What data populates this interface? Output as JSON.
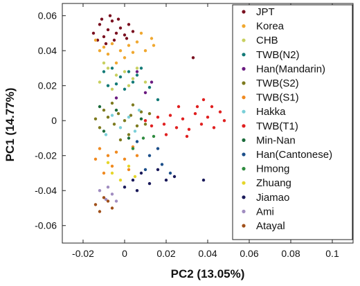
{
  "chart_data": {
    "type": "scatter",
    "xlabel": "PC2 (13.05%)",
    "ylabel": "PC1 (14.77%)",
    "xlim": [
      -0.03,
      0.11
    ],
    "ylim": [
      -0.07,
      0.067
    ],
    "x_ticks": [
      "-0.02",
      "0",
      "0.02",
      "0.04",
      "0.06",
      "0.08",
      "0.1"
    ],
    "x_tick_values": [
      -0.02,
      0,
      0.02,
      0.04,
      0.06,
      0.08,
      0.1
    ],
    "y_ticks": [
      "0.06",
      "0.04",
      "0.02",
      "0",
      "-0.02",
      "-0.04",
      "-0.06"
    ],
    "y_tick_values": [
      0.06,
      0.04,
      0.02,
      0,
      -0.02,
      -0.04,
      -0.06
    ],
    "legend_position": "top-right",
    "series": [
      {
        "name": "JPT",
        "color": "#7a1020",
        "points": [
          [
            -0.015,
            0.05
          ],
          [
            -0.012,
            0.055
          ],
          [
            -0.01,
            0.048
          ],
          [
            -0.008,
            0.052
          ],
          [
            -0.006,
            0.057
          ],
          [
            -0.004,
            0.05
          ],
          [
            -0.002,
            0.053
          ],
          [
            0,
            0.049
          ],
          [
            0.002,
            0.055
          ],
          [
            -0.009,
            0.044
          ],
          [
            -0.005,
            0.046
          ],
          [
            -0.011,
            0.058
          ],
          [
            0.001,
            0.047
          ],
          [
            -0.013,
            0.046
          ],
          [
            -0.003,
            0.058
          ],
          [
            0.004,
            0.051
          ],
          [
            -0.007,
            0.06
          ],
          [
            0.033,
            0.036
          ]
        ]
      },
      {
        "name": "Korea",
        "color": "#f0a830",
        "points": [
          [
            -0.014,
            0.046
          ],
          [
            -0.01,
            0.042
          ],
          [
            -0.006,
            0.044
          ],
          [
            -0.002,
            0.04
          ],
          [
            0.002,
            0.043
          ],
          [
            0.006,
            0.045
          ],
          [
            0.01,
            0.04
          ],
          [
            0.013,
            0.047
          ],
          [
            -0.008,
            0.038
          ],
          [
            0,
            0.036
          ],
          [
            0.004,
            0.039
          ],
          [
            -0.012,
            0.04
          ],
          [
            0.008,
            0.05
          ],
          [
            0.014,
            0.043
          ],
          [
            -0.004,
            0.033
          ]
        ]
      },
      {
        "name": "CHB",
        "color": "#c8d060",
        "points": [
          [
            -0.008,
            0.03
          ],
          [
            -0.004,
            0.026
          ],
          [
            0,
            0.028
          ],
          [
            0.004,
            0.024
          ],
          [
            -0.012,
            0.022
          ],
          [
            0.002,
            0.02
          ],
          [
            0.006,
            0.03
          ],
          [
            -0.006,
            0.018
          ],
          [
            0.01,
            0.022
          ],
          [
            -0.01,
            0.033
          ]
        ]
      },
      {
        "name": "TWB(N2)",
        "color": "#137a77",
        "points": [
          [
            -0.01,
            0.028
          ],
          [
            -0.006,
            0.03
          ],
          [
            -0.002,
            0.025
          ],
          [
            0.002,
            0.028
          ],
          [
            0.006,
            0.026
          ],
          [
            -0.004,
            0.021
          ],
          [
            0,
            0.018
          ],
          [
            0.004,
            0.022
          ],
          [
            -0.008,
            0.02
          ],
          [
            0.008,
            0.03
          ],
          [
            0.012,
            0.019
          ],
          [
            0.016,
            0.012
          ]
        ]
      },
      {
        "name": "Han(Mandarin)",
        "color": "#6a1a80",
        "points": [
          [
            0.006,
            0.028
          ],
          [
            0.01,
            0.016
          ],
          [
            -0.004,
            0.013
          ],
          [
            0.013,
            0.022
          ]
        ]
      },
      {
        "name": "TWB(S2)",
        "color": "#7d7a1e",
        "points": [
          [
            -0.008,
            0.002
          ],
          [
            -0.005,
            -0.002
          ],
          [
            -0.003,
            0.004
          ],
          [
            0,
            0
          ],
          [
            0.003,
            0.003
          ],
          [
            0.006,
            -0.003
          ],
          [
            -0.012,
            -0.004
          ],
          [
            -0.01,
            0.006
          ],
          [
            0.008,
            0.005
          ],
          [
            -0.006,
            0.01
          ],
          [
            0.002,
            -0.008
          ],
          [
            0.01,
            -0.002
          ],
          [
            -0.014,
            0.001
          ],
          [
            0.004,
            0.009
          ],
          [
            -0.002,
            -0.011
          ],
          [
            0.012,
            0.004
          ]
        ]
      },
      {
        "name": "TWB(S1)",
        "color": "#f08a20",
        "points": [
          [
            -0.012,
            -0.016
          ],
          [
            -0.008,
            -0.02
          ],
          [
            -0.004,
            -0.018
          ],
          [
            0,
            -0.022
          ],
          [
            0.004,
            -0.015
          ],
          [
            -0.006,
            -0.026
          ],
          [
            -0.01,
            -0.03
          ],
          [
            0.002,
            -0.028
          ],
          [
            0.006,
            -0.02
          ],
          [
            -0.014,
            -0.022
          ]
        ]
      },
      {
        "name": "Hakka",
        "color": "#7acfd8",
        "points": [
          [
            -0.006,
            0.003
          ],
          [
            -0.002,
            -0.004
          ],
          [
            0.002,
            0.002
          ],
          [
            0.005,
            -0.006
          ],
          [
            -0.009,
            -0.008
          ],
          [
            0.007,
            0.006
          ]
        ]
      },
      {
        "name": "TWB(T1)",
        "color": "#e02020",
        "points": [
          [
            0.01,
            0
          ],
          [
            0.013,
            -0.003
          ],
          [
            0.016,
            0.002
          ],
          [
            0.019,
            -0.002
          ],
          [
            0.022,
            0.003
          ],
          [
            0.025,
            -0.004
          ],
          [
            0.028,
            0.001
          ],
          [
            0.031,
            -0.005
          ],
          [
            0.034,
            0.004
          ],
          [
            0.037,
            -0.002
          ],
          [
            0.04,
            0.002
          ],
          [
            0.043,
            -0.004
          ],
          [
            0.046,
            0.005
          ],
          [
            0.048,
            0
          ],
          [
            0.02,
            -0.008
          ],
          [
            0.026,
            0.008
          ],
          [
            0.035,
            0.008
          ],
          [
            0.03,
            -0.009
          ],
          [
            0.042,
            0.008
          ],
          [
            0.038,
            0.012
          ]
        ]
      },
      {
        "name": "Min-Nan",
        "color": "#1b6b3a",
        "points": [
          [
            -0.01,
            -0.006
          ],
          [
            -0.004,
            0.006
          ],
          [
            0.002,
            -0.01
          ],
          [
            0.008,
            0.001
          ],
          [
            -0.012,
            0.008
          ]
        ]
      },
      {
        "name": "Han(Cantonese)",
        "color": "#1c4f8a",
        "points": [
          [
            0.006,
            -0.012
          ],
          [
            0.012,
            -0.02
          ],
          [
            0.018,
            -0.025
          ],
          [
            0.022,
            -0.03
          ],
          [
            0.01,
            -0.028
          ],
          [
            0.016,
            -0.016
          ]
        ]
      },
      {
        "name": "Hmong",
        "color": "#2e8b3f",
        "points": [
          [
            0.004,
            -0.016
          ],
          [
            0.009,
            -0.01
          ],
          [
            0.014,
            -0.009
          ]
        ]
      },
      {
        "name": "Zhuang",
        "color": "#e6d62a",
        "points": [
          [
            -0.006,
            -0.03
          ],
          [
            -0.002,
            -0.034
          ],
          [
            0.002,
            -0.026
          ],
          [
            -0.008,
            -0.024
          ],
          [
            0.005,
            -0.032
          ]
        ]
      },
      {
        "name": "Jiamao",
        "color": "#1a1a5a",
        "points": [
          [
            0,
            -0.038
          ],
          [
            0.004,
            -0.034
          ],
          [
            0.008,
            -0.03
          ],
          [
            0.012,
            -0.036
          ],
          [
            0.016,
            -0.028
          ],
          [
            0.02,
            -0.034
          ],
          [
            0.024,
            -0.032
          ],
          [
            0.038,
            -0.034
          ],
          [
            0.006,
            -0.04
          ]
        ]
      },
      {
        "name": "Ami",
        "color": "#a08cc0",
        "points": [
          [
            -0.012,
            -0.04
          ],
          [
            -0.009,
            -0.045
          ],
          [
            -0.006,
            -0.042
          ],
          [
            -0.008,
            -0.038
          ],
          [
            -0.004,
            -0.046
          ]
        ]
      },
      {
        "name": "Atayal",
        "color": "#a0501a",
        "points": [
          [
            -0.014,
            -0.048
          ],
          [
            -0.01,
            -0.044
          ],
          [
            -0.006,
            -0.05
          ],
          [
            -0.012,
            -0.052
          ],
          [
            -0.008,
            -0.046
          ]
        ]
      }
    ]
  }
}
